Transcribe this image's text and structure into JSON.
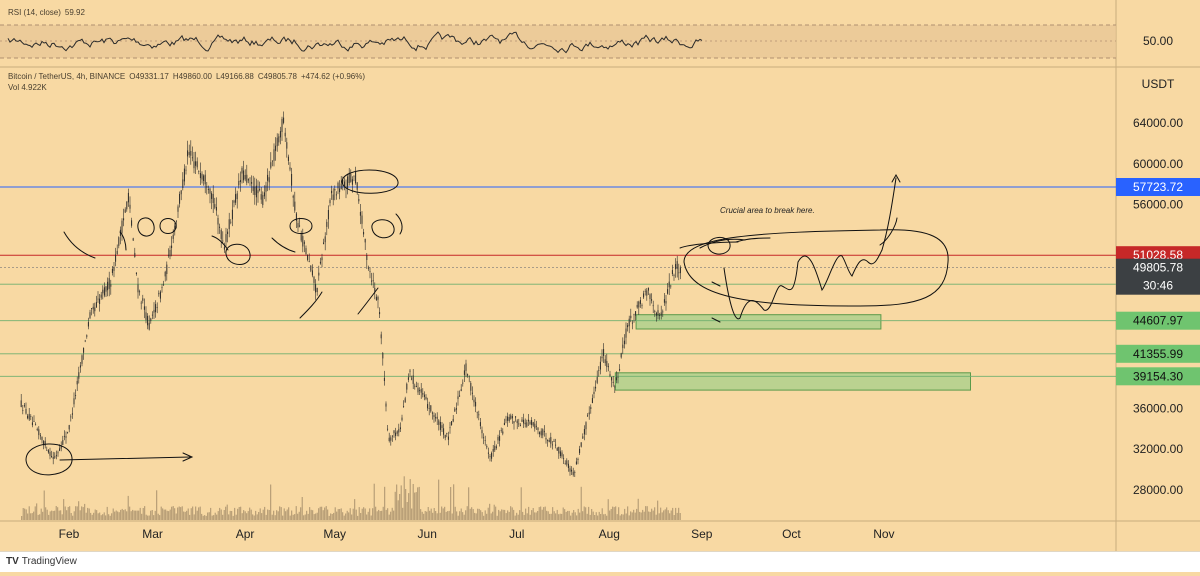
{
  "rsi_pane": {
    "title": "RSI (14, close)",
    "value": "59.92",
    "level_label": "50.00"
  },
  "legend": {
    "symbol": "Bitcoin / TetherUS, 4h, BINANCE",
    "open": "O49331.17",
    "high": "H49860.00",
    "low": "L49166.88",
    "close": "C49805.78",
    "change": "+474.62 (+0.96%)",
    "volume": "Vol 4.922K"
  },
  "footer": {
    "brand": "TradingView"
  },
  "annotation_text": "Crucial area to break here.",
  "colors": {
    "background": "#f8d9a3",
    "candle": "#2a2a2a",
    "blue_level": "#2962ff",
    "red_level": "#c62828",
    "green_zone": "#4caf50",
    "price_tag_dark": "#3c4043"
  },
  "chart_data": {
    "type": "candlestick",
    "symbol": "Bitcoin / TetherUS",
    "interval": "4h",
    "exchange": "BINANCE",
    "currency": "USDT",
    "x_ticks": [
      "Feb",
      "Mar",
      "Apr",
      "May",
      "Jun",
      "Jul",
      "Aug",
      "Sep",
      "Oct",
      "Nov"
    ],
    "y_ticks": [
      "64000.00",
      "60000.00",
      "56000.00",
      "36000.00",
      "32000.00",
      "28000.00"
    ],
    "ylim": [
      25000,
      66000
    ],
    "price_path": [
      {
        "t": "2021-01-16",
        "p": 36500
      },
      {
        "t": "2021-01-22",
        "p": 33500
      },
      {
        "t": "2021-01-27",
        "p": 31000
      },
      {
        "t": "2021-02-01",
        "p": 34000
      },
      {
        "t": "2021-02-08",
        "p": 45000
      },
      {
        "t": "2021-02-15",
        "p": 48500
      },
      {
        "t": "2021-02-21",
        "p": 57000
      },
      {
        "t": "2021-02-24",
        "p": 48000
      },
      {
        "t": "2021-02-28",
        "p": 44000
      },
      {
        "t": "2021-03-05",
        "p": 48500
      },
      {
        "t": "2021-03-13",
        "p": 61000
      },
      {
        "t": "2021-03-20",
        "p": 58000
      },
      {
        "t": "2021-03-25",
        "p": 52000
      },
      {
        "t": "2021-03-31",
        "p": 59000
      },
      {
        "t": "2021-04-07",
        "p": 56500
      },
      {
        "t": "2021-04-14",
        "p": 64500
      },
      {
        "t": "2021-04-18",
        "p": 55000
      },
      {
        "t": "2021-04-25",
        "p": 47500
      },
      {
        "t": "2021-04-30",
        "p": 57000
      },
      {
        "t": "2021-05-08",
        "p": 58800
      },
      {
        "t": "2021-05-12",
        "p": 50500
      },
      {
        "t": "2021-05-16",
        "p": 46000
      },
      {
        "t": "2021-05-19",
        "p": 33000
      },
      {
        "t": "2021-05-23",
        "p": 34000
      },
      {
        "t": "2021-05-26",
        "p": 39500
      },
      {
        "t": "2021-06-01",
        "p": 36500
      },
      {
        "t": "2021-06-08",
        "p": 33000
      },
      {
        "t": "2021-06-14",
        "p": 40000
      },
      {
        "t": "2021-06-22",
        "p": 31000
      },
      {
        "t": "2021-06-28",
        "p": 35000
      },
      {
        "t": "2021-07-06",
        "p": 34500
      },
      {
        "t": "2021-07-14",
        "p": 32500
      },
      {
        "t": "2021-07-20",
        "p": 29500
      },
      {
        "t": "2021-07-24",
        "p": 34000
      },
      {
        "t": "2021-07-30",
        "p": 41500
      },
      {
        "t": "2021-08-03",
        "p": 38000
      },
      {
        "t": "2021-08-07",
        "p": 44000
      },
      {
        "t": "2021-08-14",
        "p": 47500
      },
      {
        "t": "2021-08-18",
        "p": 44700
      },
      {
        "t": "2021-08-23",
        "p": 49900
      },
      {
        "t": "2021-08-25",
        "p": 49806
      }
    ],
    "horizontal_levels": [
      {
        "price": 57723.72,
        "label": "57723.72",
        "color": "#2962ff"
      },
      {
        "price": 51028.58,
        "label": "51028.58",
        "color": "#c62828"
      },
      {
        "price": 48190.7,
        "label": "48190.70",
        "color": "#6fb06f"
      },
      {
        "price": 44607.97,
        "label": "44607.97",
        "color": "#6fb06f"
      },
      {
        "price": 41355.99,
        "label": "41355.99",
        "color": "#6fb06f"
      },
      {
        "price": 39154.3,
        "label": "39154.30",
        "color": "#6fb06f"
      }
    ],
    "current_price": {
      "price": 49805.78,
      "label": "49805.78",
      "countdown": "30:46"
    },
    "zones": [
      {
        "from": "2021-08-10",
        "to": "2021-10-31",
        "low": 43800,
        "high": 45200
      },
      {
        "from": "2021-08-03",
        "to": "2021-11-30",
        "low": 37800,
        "high": 39500
      }
    ],
    "rsi_level": 50
  }
}
